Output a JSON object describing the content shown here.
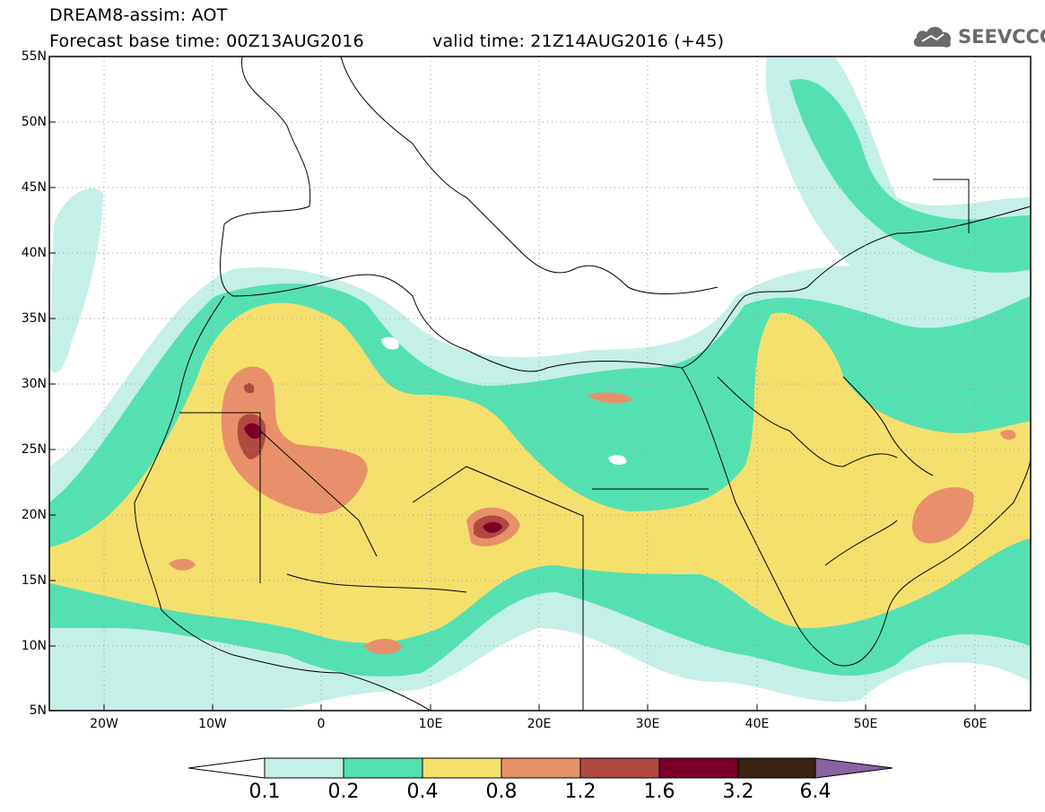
{
  "header": {
    "line1": "DREAM8-assim: AOT",
    "line2": "Forecast base time: 00Z13AUG2016",
    "valid": "valid time: 21Z14AUG2016 (+45)"
  },
  "logo": {
    "text": "SEEVCCC",
    "icon": "cloud-icon"
  },
  "map": {
    "y_axis": [
      "55N",
      "50N",
      "45N",
      "40N",
      "35N",
      "30N",
      "25N",
      "20N",
      "15N",
      "10N",
      "5N"
    ],
    "x_axis": [
      "20W",
      "10W",
      "0",
      "10E",
      "20E",
      "30E",
      "40E",
      "50E",
      "60E"
    ],
    "lon_range": [
      -25,
      65
    ],
    "lat_range": [
      5,
      55
    ]
  },
  "colorbar": {
    "labels": [
      "0.1",
      "0.2",
      "0.4",
      "0.8",
      "1.2",
      "1.6",
      "3.2",
      "6.4"
    ],
    "colors": [
      "#c4f0e8",
      "#55e0b2",
      "#f5e06e",
      "#e8906a",
      "#b04a40",
      "#7a0028",
      "#3a2414",
      "#8a63a3"
    ]
  }
}
